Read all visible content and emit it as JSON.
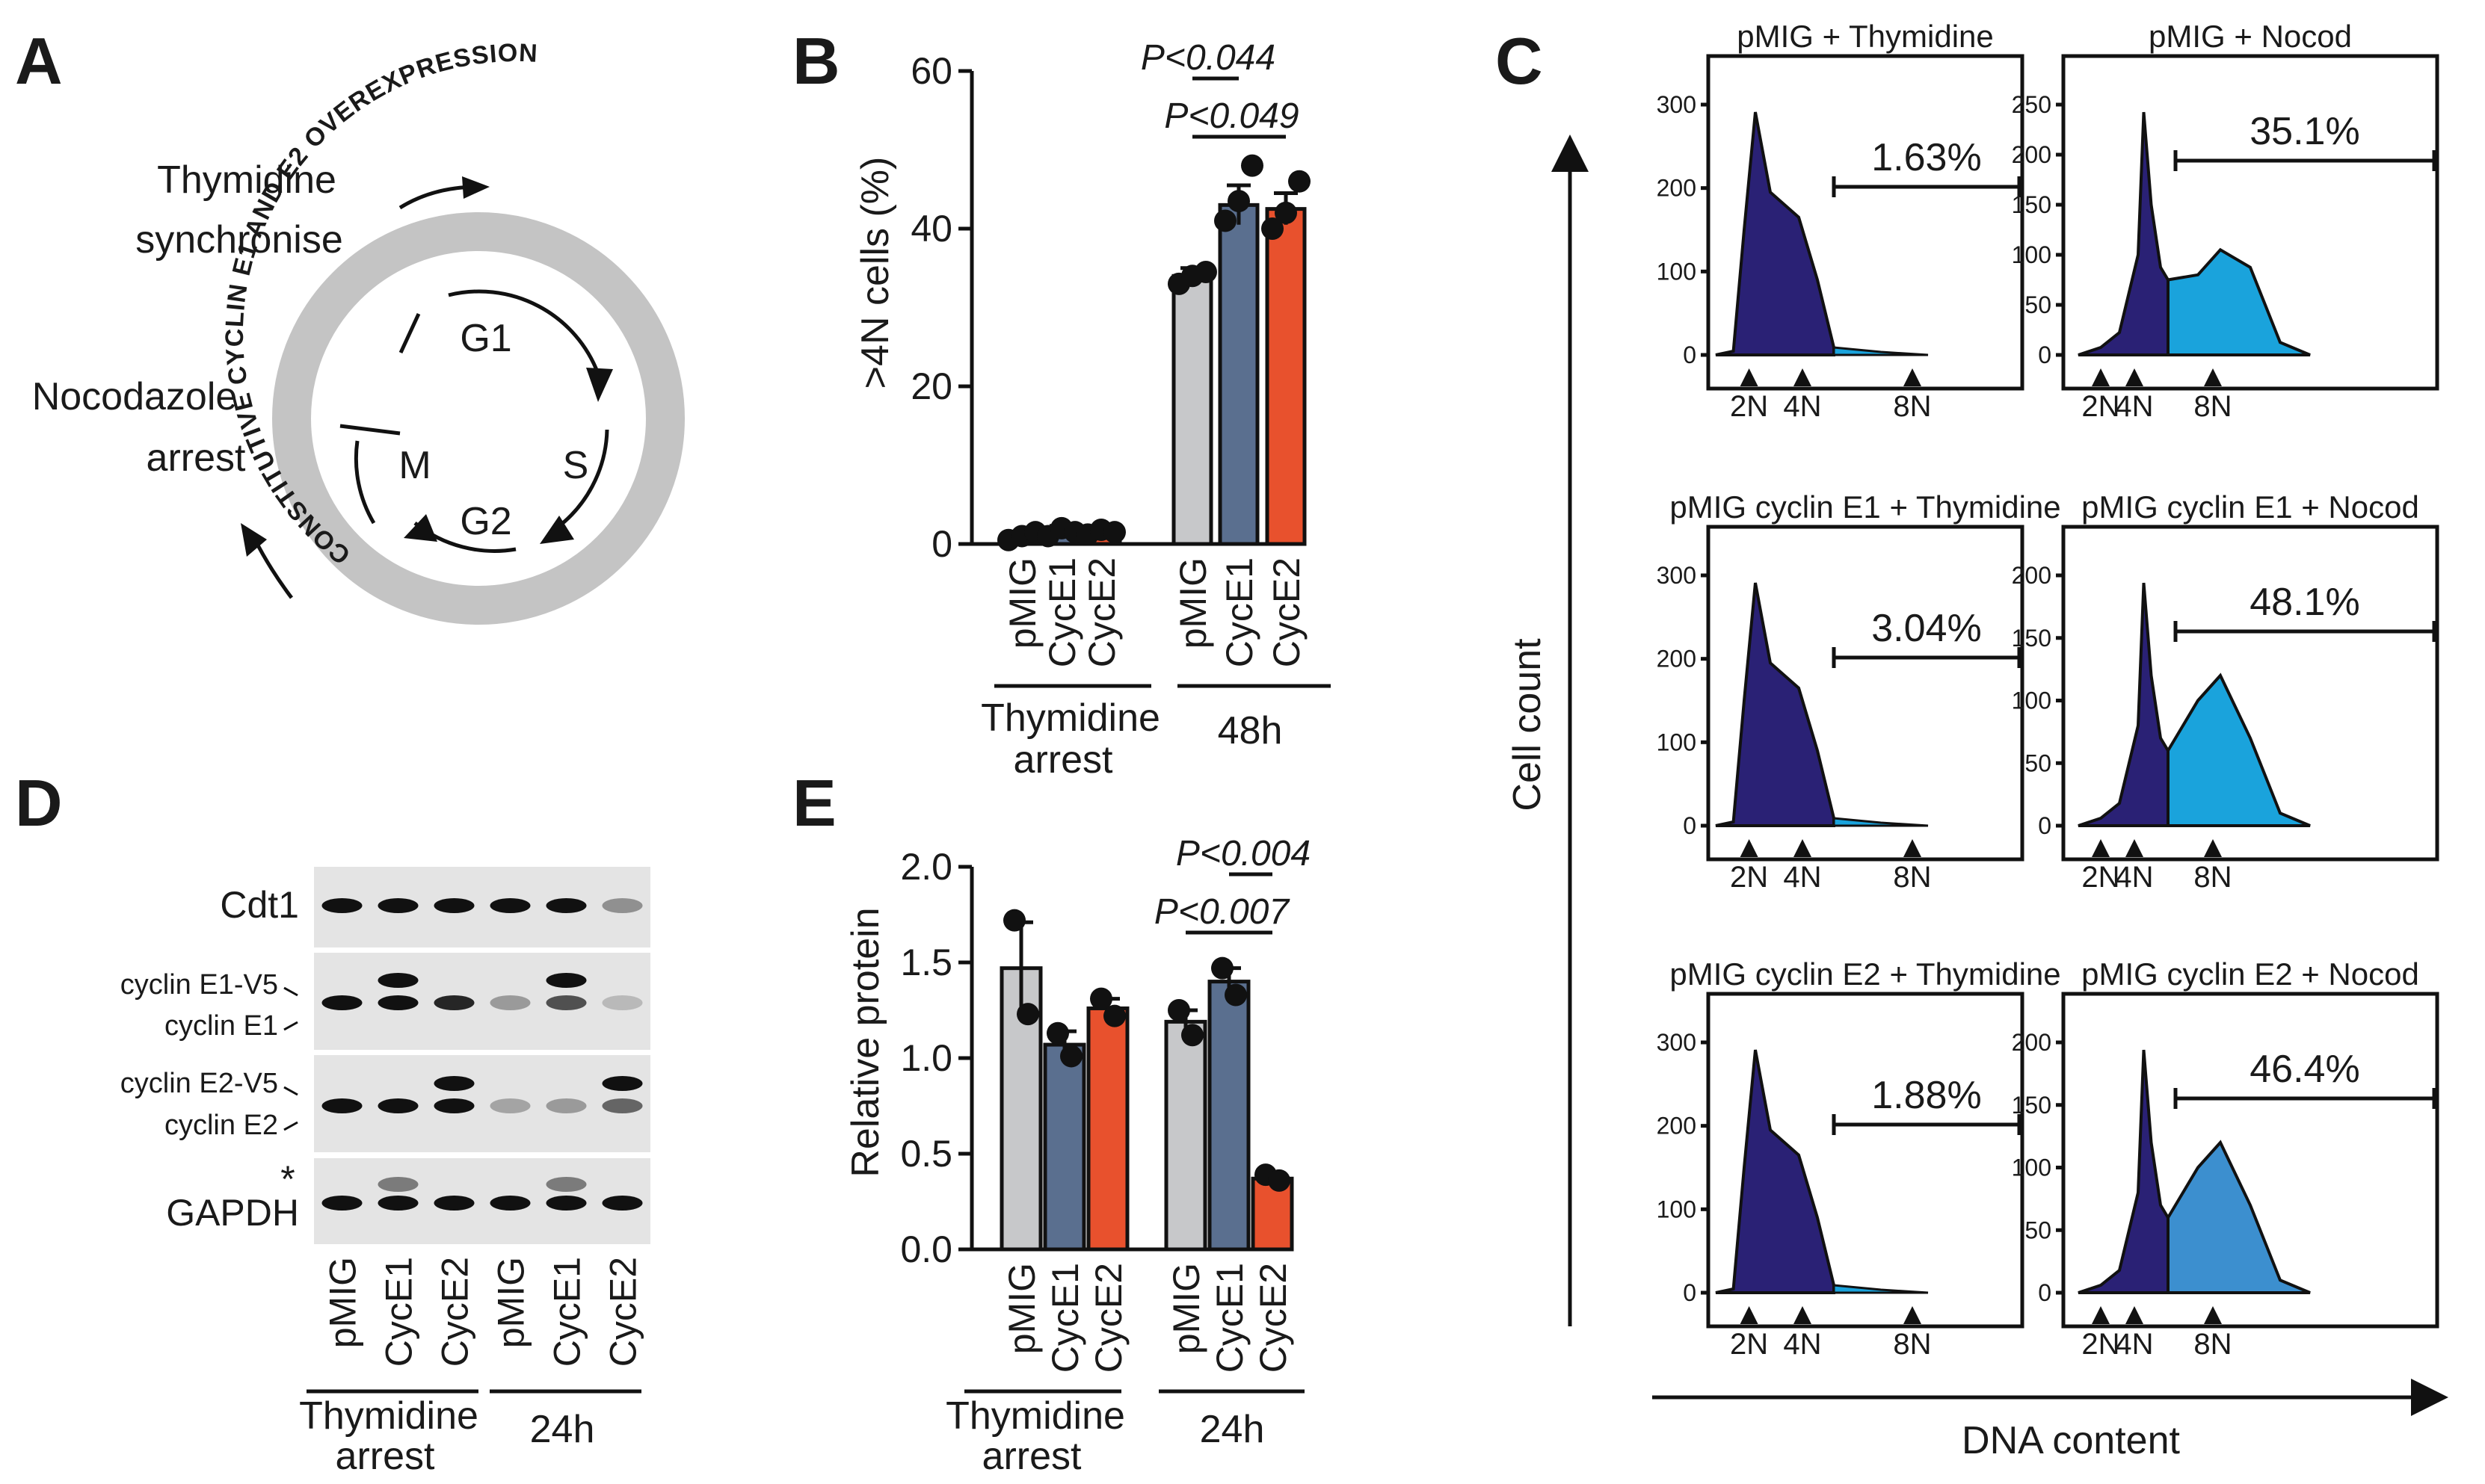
{
  "panels": {
    "A": {
      "letter": "A",
      "thymidine_label_1": "Thymidine",
      "thymidine_label_2": "synchronise",
      "nocodazole_label_1": "Nocodazole",
      "nocodazole_label_2": "arrest",
      "ring_text": "CONSTITUTIVE CYCLIN E1 AND E2 OVEREXPRESSION",
      "phases": [
        "G1",
        "S",
        "G2",
        "M"
      ]
    },
    "B": {
      "letter": "B",
      "ylabel": ">4N cells (%)",
      "yticks": [
        "0",
        "20",
        "40",
        "60"
      ],
      "categories": [
        "pMIG",
        "CycE1",
        "CycE2",
        "pMIG",
        "CycE1",
        "CycE2"
      ],
      "groups": [
        "Thymidine",
        "arrest",
        "48h"
      ],
      "pvalues": [
        "P<0.044",
        "P<0.049"
      ]
    },
    "C": {
      "letter": "C",
      "ylabel": "Cell count",
      "xlabel": "DNA content",
      "ploidy_labels": [
        "2N",
        "4N",
        "8N"
      ],
      "histograms": [
        {
          "title": "pMIG + Thymidine",
          "percent": "1.63%",
          "yticks": [
            "0",
            "100",
            "200",
            "300"
          ]
        },
        {
          "title": "pMIG + Nocod",
          "percent": "35.1%",
          "yticks": [
            "0",
            "50",
            "100",
            "150",
            "200",
            "250"
          ]
        },
        {
          "title": "pMIG cyclin E1 + Thymidine",
          "percent": "3.04%",
          "yticks": [
            "0",
            "100",
            "200",
            "300"
          ]
        },
        {
          "title": "pMIG cyclin E1 + Nocod",
          "percent": "48.1%",
          "yticks": [
            "0",
            "50",
            "100",
            "150",
            "200"
          ]
        },
        {
          "title": "pMIG cyclin E2 + Thymidine",
          "percent": "1.88%",
          "yticks": [
            "0",
            "100",
            "200",
            "300"
          ]
        },
        {
          "title": "pMIG cyclin E2 + Nocod",
          "percent": "46.4%",
          "yticks": [
            "0",
            "50",
            "100",
            "150",
            "200"
          ]
        }
      ]
    },
    "D": {
      "letter": "D",
      "rows": [
        "Cdt1",
        "cyclin E1-V5",
        "cyclin E1",
        "cyclin E2-V5",
        "cyclin E2",
        "GAPDH"
      ],
      "asterisk": "*",
      "lanes": [
        "pMIG",
        "CycE1",
        "CycE2",
        "pMIG",
        "CycE1",
        "CycE2"
      ],
      "groups": [
        "Thymidine",
        "arrest",
        "24h"
      ]
    },
    "E": {
      "letter": "E",
      "ylabel": "Relative protein",
      "yticks": [
        "0.0",
        "0.5",
        "1.0",
        "1.5",
        "2.0"
      ],
      "categories": [
        "pMIG",
        "CycE1",
        "CycE2",
        "pMIG",
        "CycE1",
        "CycE2"
      ],
      "groups": [
        "Thymidine",
        "arrest",
        "24h"
      ],
      "pvalues": [
        "P<0.004",
        "P<0.007"
      ]
    }
  },
  "colors": {
    "pMIG": "#c7c8ca",
    "CycE1": "#5a6f8f",
    "CycE2": "#e8512d",
    "hist_dark": "#2a2175",
    "hist_light": "#1aa3dc",
    "hist_light_alt": "#3c8fcf",
    "ring": "#c4c4c4"
  },
  "chart_data": [
    {
      "type": "bar",
      "title": "",
      "ylabel": ">4N cells (%)",
      "xlabel": "",
      "ylim": [
        0,
        60
      ],
      "categories": [
        "pMIG",
        "CycE1",
        "CycE2",
        "pMIG",
        "CycE1",
        "CycE2"
      ],
      "groups": [
        "Thymidine arrest",
        "48h"
      ],
      "values": [
        1.0,
        1.5,
        1.5,
        34.0,
        43.0,
        42.5
      ],
      "errors": [
        0.5,
        0.8,
        0.5,
        1.0,
        2.5,
        2.0
      ],
      "points": [
        [
          0.5,
          1.0,
          1.5
        ],
        [
          1.0,
          2.0,
          1.5
        ],
        [
          1.2,
          1.8,
          1.5
        ],
        [
          33.0,
          34.0,
          34.5
        ],
        [
          41.0,
          43.5,
          48.0
        ],
        [
          40.0,
          42.0,
          46.0
        ]
      ],
      "comparisons": [
        {
          "from": 3,
          "to": 4,
          "label": "P<0.044"
        },
        {
          "from": 3,
          "to": 5,
          "label": "P<0.049"
        }
      ]
    },
    {
      "type": "bar",
      "title": "",
      "ylabel": "Relative protein",
      "xlabel": "",
      "ylim": [
        0,
        2.0
      ],
      "categories": [
        "pMIG",
        "CycE1",
        "CycE2",
        "pMIG",
        "CycE1",
        "CycE2"
      ],
      "groups": [
        "Thymidine arrest",
        "24h"
      ],
      "values": [
        1.47,
        1.07,
        1.26,
        1.19,
        1.4,
        0.37
      ],
      "errors": [
        0.24,
        0.07,
        0.05,
        0.06,
        0.07,
        0.02
      ],
      "points": [
        [
          1.72,
          1.23
        ],
        [
          1.13,
          1.01
        ],
        [
          1.31,
          1.22
        ],
        [
          1.25,
          1.12
        ],
        [
          1.47,
          1.33
        ],
        [
          0.39,
          0.36
        ]
      ],
      "comparisons": [
        {
          "from": 4,
          "to": 5,
          "label": "P<0.004"
        },
        {
          "from": 3,
          "to": 5,
          "label": "P<0.007"
        }
      ]
    }
  ]
}
